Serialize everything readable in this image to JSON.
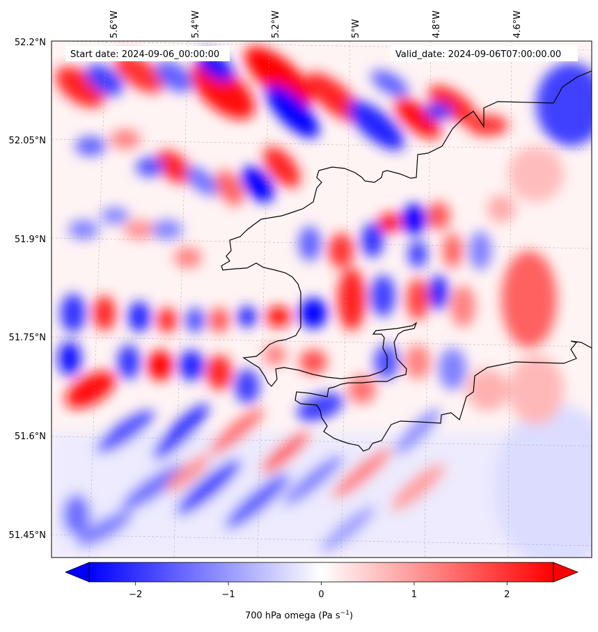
{
  "header": {
    "start_date": "Start date: 2024-09-06_00:00:00",
    "valid_date": "Valid_date: 2024-09-06T07:00:00.00"
  },
  "axes": {
    "lon_ticks": [
      "5.6°W",
      "5.4°W",
      "5.2°W",
      "5°W",
      "4.8°W",
      "4.6°W"
    ],
    "lat_ticks": [
      "52.2°N",
      "52.05°N",
      "51.9°N",
      "51.75°N",
      "51.6°N",
      "51.45°N"
    ]
  },
  "colorbar": {
    "ticks": [
      "−2",
      "−1",
      "0",
      "1",
      "2"
    ],
    "tick_values": [
      -2,
      -1,
      0,
      1,
      2
    ],
    "range": [
      -2.5,
      2.5
    ],
    "label_main": "700 hPa omega (Pa s",
    "label_exp": "−1",
    "label_close": ")",
    "colors": {
      "negative": "#0000ff",
      "zero": "#ffffff",
      "positive": "#ff0000"
    }
  },
  "chart_data": {
    "type": "heatmap",
    "variable": "700 hPa omega",
    "units": "Pa s−1",
    "colormap": "bwr",
    "vmin": -2.5,
    "vmax": 2.5,
    "extend": "both",
    "lon_ticks_deg": [
      -5.6,
      -5.4,
      -5.2,
      -5.0,
      -4.8,
      -4.6
    ],
    "lat_ticks_deg": [
      52.2,
      52.05,
      51.9,
      51.75,
      51.6,
      51.45
    ],
    "gridlines": true,
    "coastlines": true
  }
}
